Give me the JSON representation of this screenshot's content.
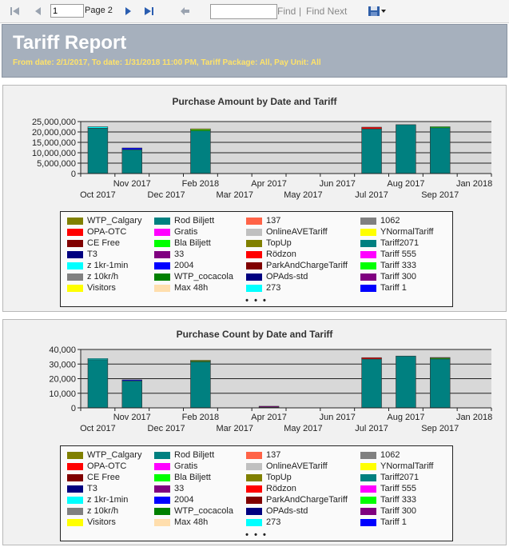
{
  "toolbar": {
    "page_value": "1",
    "page_label": "Page 2",
    "find_placeholder": "",
    "find_label": "Find",
    "separator": "|",
    "find_next_label": "Find Next"
  },
  "report": {
    "title": "Tariff Report",
    "subtitle": "From date: 2/1/2017, To date: 1/31/2018 11:00 PM, Tariff Package: All, Pay Unit: All"
  },
  "legend_items": [
    {
      "label": "WTP_Calgary",
      "color": "#808000"
    },
    {
      "label": "OPA-OTC",
      "color": "#ff0000"
    },
    {
      "label": "CE Free",
      "color": "#800000"
    },
    {
      "label": "T3",
      "color": "#000080"
    },
    {
      "label": "z 1kr-1min",
      "color": "#00ffff"
    },
    {
      "label": "z 10kr/h",
      "color": "#808080"
    },
    {
      "label": "Visitors",
      "color": "#ffff00"
    },
    {
      "label": "Rod Biljett",
      "color": "#008080"
    },
    {
      "label": "Gratis",
      "color": "#ff00ff"
    },
    {
      "label": "Bla Biljett",
      "color": "#00ff00"
    },
    {
      "label": "33",
      "color": "#800080"
    },
    {
      "label": "2004",
      "color": "#0000ff"
    },
    {
      "label": "WTP_cocacola",
      "color": "#008000"
    },
    {
      "label": "Max 48h",
      "color": "#ffdead"
    },
    {
      "label": "137",
      "color": "#ff6347"
    },
    {
      "label": "OnlineAVETariff",
      "color": "#c0c0c0"
    },
    {
      "label": "TopUp",
      "color": "#808000"
    },
    {
      "label": "Rödzon",
      "color": "#ff0000"
    },
    {
      "label": "ParkAndChargeTariff",
      "color": "#800000"
    },
    {
      "label": "OPAds-std",
      "color": "#000080"
    },
    {
      "label": "273",
      "color": "#00ffff"
    },
    {
      "label": "1062",
      "color": "#808080"
    },
    {
      "label": "YNormalTariff",
      "color": "#ffff00"
    },
    {
      "label": "Tariff2071",
      "color": "#008080"
    },
    {
      "label": "Tariff 555",
      "color": "#ff00ff"
    },
    {
      "label": "Tariff 333",
      "color": "#00ff00"
    },
    {
      "label": "Tariff 300",
      "color": "#800080"
    },
    {
      "label": "Tariff 1",
      "color": "#0000ff"
    }
  ],
  "legend_more": "• • •",
  "chart_data": [
    {
      "type": "bar",
      "title": "Purchase Amount by Date and Tariff",
      "xlabel": "",
      "ylabel": "",
      "ylim": [
        0,
        25000000
      ],
      "yticks": [
        "0",
        "5,000,000",
        "10,000,000",
        "15,000,000",
        "20,000,000",
        "25,000,000"
      ],
      "x_ticks_top": [
        "Nov 2017",
        "Feb 2018",
        "Apr 2017",
        "Jun 2017",
        "Aug 2017",
        "Jan 2018"
      ],
      "x_ticks_bottom": [
        "Oct 2017",
        "Dec 2017",
        "Mar 2017",
        "May 2017",
        "Jul 2017",
        "Sep 2017"
      ],
      "categories": [
        "Oct 2017",
        "Nov 2017",
        "Dec 2017",
        "Feb 2018",
        "Mar 2017",
        "Apr 2017",
        "May 2017",
        "Jun 2017",
        "Jul 2017",
        "Aug 2017",
        "Sep 2017",
        "Jan 2018"
      ],
      "series": [
        {
          "name": "Rod Biljett",
          "color": "#008080",
          "values": [
            21800000,
            11500000,
            0,
            20500000,
            0,
            0,
            0,
            0,
            21500000,
            23500000,
            22000000,
            0
          ]
        },
        {
          "name": "2004",
          "color": "#0000ff",
          "values": [
            0,
            800000,
            0,
            0,
            0,
            0,
            0,
            0,
            0,
            0,
            0,
            0
          ]
        },
        {
          "name": "z 1kr-1min",
          "color": "#00ffff",
          "values": [
            700000,
            0,
            0,
            0,
            0,
            0,
            0,
            0,
            0,
            0,
            0,
            0
          ]
        },
        {
          "name": "Bla Biljett",
          "color": "#00ff00",
          "values": [
            0,
            0,
            0,
            600000,
            0,
            0,
            0,
            0,
            0,
            0,
            500000,
            0
          ]
        },
        {
          "name": "Visitors",
          "color": "#ffff00",
          "values": [
            0,
            0,
            0,
            400000,
            0,
            0,
            0,
            0,
            0,
            0,
            0,
            0
          ]
        },
        {
          "name": "Rödzon",
          "color": "#ff0000",
          "values": [
            0,
            0,
            0,
            0,
            0,
            0,
            0,
            0,
            800000,
            0,
            0,
            0
          ]
        }
      ]
    },
    {
      "type": "bar",
      "title": "Purchase Count by Date and Tariff",
      "xlabel": "",
      "ylabel": "",
      "ylim": [
        0,
        40000
      ],
      "yticks": [
        "0",
        "10,000",
        "20,000",
        "30,000",
        "40,000"
      ],
      "x_ticks_top": [
        "Nov 2017",
        "Feb 2018",
        "Apr 2017",
        "Jun 2017",
        "Aug 2017",
        "Jan 2018"
      ],
      "x_ticks_bottom": [
        "Oct 2017",
        "Dec 2017",
        "Mar 2017",
        "May 2017",
        "Jul 2017",
        "Sep 2017"
      ],
      "categories": [
        "Oct 2017",
        "Nov 2017",
        "Dec 2017",
        "Feb 2018",
        "Mar 2017",
        "Apr 2017",
        "May 2017",
        "Jun 2017",
        "Jul 2017",
        "Aug 2017",
        "Sep 2017",
        "Jan 2018"
      ],
      "series": [
        {
          "name": "Rod Biljett",
          "color": "#008080",
          "values": [
            33000,
            18500,
            0,
            31500,
            0,
            0,
            0,
            0,
            33500,
            35500,
            33500,
            0
          ]
        },
        {
          "name": "2004",
          "color": "#0000ff",
          "values": [
            0,
            700,
            0,
            0,
            0,
            0,
            0,
            0,
            0,
            0,
            0,
            0
          ]
        },
        {
          "name": "z 1kr-1min",
          "color": "#00ffff",
          "values": [
            800,
            0,
            0,
            0,
            0,
            0,
            0,
            0,
            0,
            0,
            0,
            0
          ]
        },
        {
          "name": "Bla Biljett",
          "color": "#00ff00",
          "values": [
            0,
            0,
            0,
            600,
            0,
            0,
            0,
            0,
            0,
            0,
            600,
            0
          ]
        },
        {
          "name": "Visitors",
          "color": "#ffff00",
          "values": [
            0,
            0,
            0,
            500,
            0,
            400,
            0,
            0,
            0,
            0,
            400,
            0
          ]
        },
        {
          "name": "33",
          "color": "#800080",
          "values": [
            0,
            0,
            0,
            0,
            0,
            700,
            0,
            0,
            0,
            0,
            0,
            0
          ]
        },
        {
          "name": "Rödzon",
          "color": "#ff0000",
          "values": [
            0,
            0,
            0,
            0,
            0,
            0,
            0,
            0,
            900,
            0,
            0,
            0
          ]
        }
      ]
    }
  ]
}
